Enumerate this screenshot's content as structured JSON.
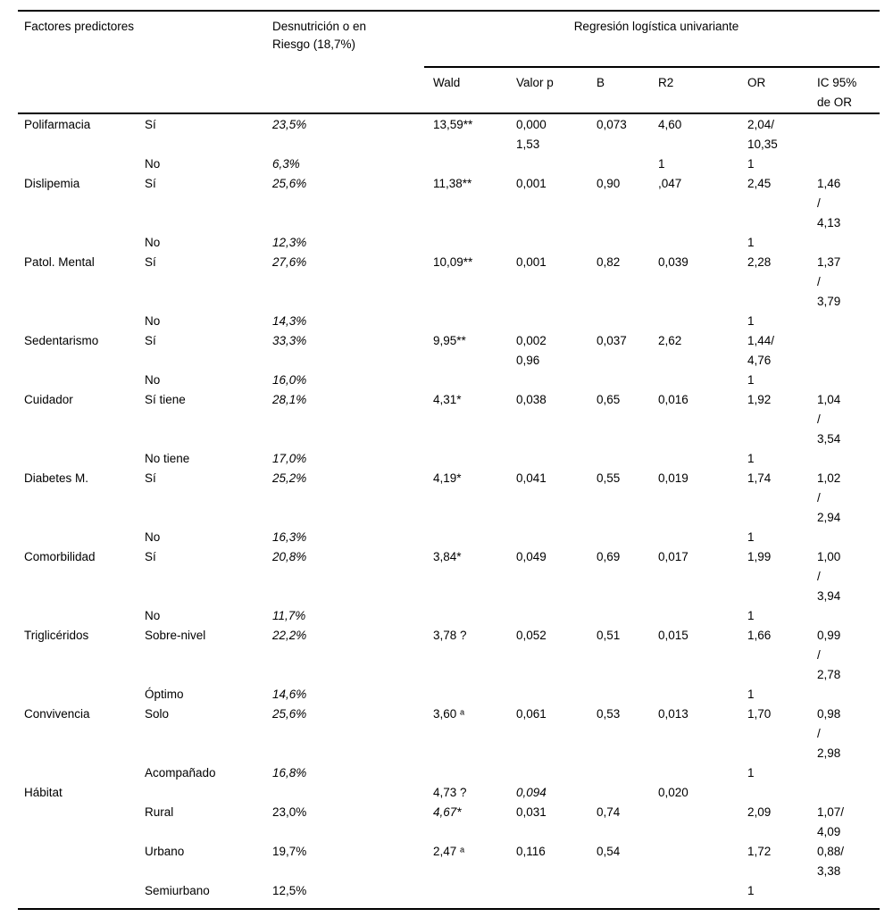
{
  "table": {
    "header": {
      "col_factores": "Factores predictores",
      "col_desnutricion": "Desnutrición o en\nRiesgo (18,7%)",
      "col_regresion": "Regresión logística univariante",
      "subcols": [
        "Wald",
        "Valor p",
        "B",
        "R2",
        "OR",
        "IC 95%\nde OR"
      ]
    },
    "rows": [
      {
        "factor": "Polifarmacia",
        "cat": "Sí",
        "pct": "23,5%",
        "wald": "13,59**",
        "p": "0,000\n1,53",
        "b": "0,073",
        "r2": "4,60",
        "or": "2,04/\n10,35",
        "ic": "",
        "italics": [
          "pct"
        ]
      },
      {
        "factor": "",
        "cat": "No",
        "pct": "6,3%",
        "wald": "",
        "p": "",
        "b": "",
        "r2": "1",
        "or": "1",
        "ic": "",
        "italics": [
          "pct"
        ]
      },
      {
        "factor": "Dislipemia",
        "cat": "Sí",
        "pct": "25,6%",
        "wald": "11,38**",
        "p": "0,001",
        "b": "0,90",
        "r2": ",047",
        "or": "2,45",
        "ic": "1,46\n/\n4,13",
        "italics": [
          "pct"
        ]
      },
      {
        "factor": "",
        "cat": "No",
        "pct": "12,3%",
        "wald": "",
        "p": "",
        "b": "",
        "r2": "",
        "or": "1",
        "ic": "",
        "italics": [
          "pct"
        ]
      },
      {
        "factor": "Patol. Mental",
        "cat": "Sí",
        "pct": "27,6%",
        "wald": "10,09**",
        "p": "0,001",
        "b": "0,82",
        "r2": "0,039",
        "or": "2,28",
        "ic": "1,37\n/\n3,79",
        "italics": [
          "pct"
        ]
      },
      {
        "factor": "",
        "cat": "No",
        "pct": "14,3%",
        "wald": "",
        "p": "",
        "b": "",
        "r2": "",
        "or": "1",
        "ic": "",
        "italics": [
          "pct"
        ]
      },
      {
        "factor": "Sedentarismo",
        "cat": "Sí",
        "pct": "33,3%",
        "wald": "9,95**",
        "p": "0,002\n0,96",
        "b": "0,037",
        "r2": "2,62",
        "or": "1,44/\n4,76",
        "ic": "",
        "italics": [
          "pct"
        ]
      },
      {
        "factor": "",
        "cat": "No",
        "pct": "16,0%",
        "wald": "",
        "p": "",
        "b": "",
        "r2": "",
        "or": "1",
        "ic": "",
        "italics": [
          "pct"
        ]
      },
      {
        "factor": "Cuidador",
        "cat": "Sí tiene",
        "pct": "28,1%",
        "wald": "4,31*",
        "p": "0,038",
        "b": "0,65",
        "r2": "0,016",
        "or": "1,92",
        "ic": "1,04\n/\n3,54",
        "italics": [
          "pct"
        ]
      },
      {
        "factor": "",
        "cat": "No tiene",
        "pct": "17,0%",
        "wald": "",
        "p": "",
        "b": "",
        "r2": "",
        "or": "1",
        "ic": "",
        "italics": [
          "pct"
        ]
      },
      {
        "factor": "Diabetes M.",
        "cat": "Sí",
        "pct": "25,2%",
        "wald": "4,19*",
        "p": "0,041",
        "b": "0,55",
        "r2": "0,019",
        "or": "1,74",
        "ic": "1,02\n/\n2,94",
        "italics": [
          "pct"
        ]
      },
      {
        "factor": "",
        "cat": "No",
        "pct": "16,3%",
        "wald": "",
        "p": "",
        "b": "",
        "r2": "",
        "or": "1",
        "ic": "",
        "italics": [
          "pct"
        ]
      },
      {
        "factor": "Comorbilidad",
        "cat": "Sí",
        "pct": "20,8%",
        "wald": "3,84*",
        "p": "0,049",
        "b": "0,69",
        "r2": "0,017",
        "or": "1,99",
        "ic": "1,00\n/\n3,94",
        "italics": [
          "pct"
        ]
      },
      {
        "factor": "",
        "cat": "No",
        "pct": "11,7%",
        "wald": "",
        "p": "",
        "b": "",
        "r2": "",
        "or": "1",
        "ic": "",
        "italics": [
          "pct"
        ]
      },
      {
        "factor": "Triglicéridos",
        "cat": "Sobre-nivel",
        "pct": "22,2%",
        "wald": "3,78 ?",
        "p": "0,052",
        "b": "0,51",
        "r2": "0,015",
        "or": "1,66",
        "ic": "0,99\n/\n2,78",
        "italics": [
          "pct"
        ]
      },
      {
        "factor": "",
        "cat": "Óptimo",
        "pct": "14,6%",
        "wald": "",
        "p": "",
        "b": "",
        "r2": "",
        "or": "1",
        "ic": "",
        "italics": [
          "pct"
        ]
      },
      {
        "factor": "Convivencia",
        "cat": "Solo",
        "pct": "25,6%",
        "wald": "3,60 ᵃ",
        "p": "0,061",
        "b": "0,53",
        "r2": "0,013",
        "or": "1,70",
        "ic": "0,98\n/\n2,98",
        "italics": [
          "pct"
        ]
      },
      {
        "factor": "",
        "cat": "Acompañado",
        "pct": "16,8%",
        "wald": "",
        "p": "",
        "b": "",
        "r2": "",
        "or": "1",
        "ic": "",
        "italics": [
          "pct"
        ]
      },
      {
        "factor": "Hábitat",
        "cat": "",
        "pct": "",
        "wald": "4,73 ?",
        "p": "0,094",
        "b": "",
        "r2": "0,020",
        "or": "",
        "ic": "",
        "italics": [
          "p"
        ]
      },
      {
        "factor": "",
        "cat": "Rural",
        "pct": "23,0%",
        "wald": "4,67*",
        "p": "0,031",
        "b": "0,74",
        "r2": "",
        "or": "2,09",
        "ic": "1,07/\n4,09",
        "italics": [
          "wald"
        ]
      },
      {
        "factor": "",
        "cat": "Urbano",
        "pct": "19,7%",
        "wald": "2,47 ᵃ",
        "p": "0,116",
        "b": "0,54",
        "r2": "",
        "or": "1,72",
        "ic": "0,88/\n3,38",
        "italics": []
      },
      {
        "factor": "",
        "cat": "Semiurbano",
        "pct": "12,5%",
        "wald": "",
        "p": "",
        "b": "",
        "r2": "",
        "or": "1",
        "ic": "",
        "italics": []
      }
    ]
  }
}
